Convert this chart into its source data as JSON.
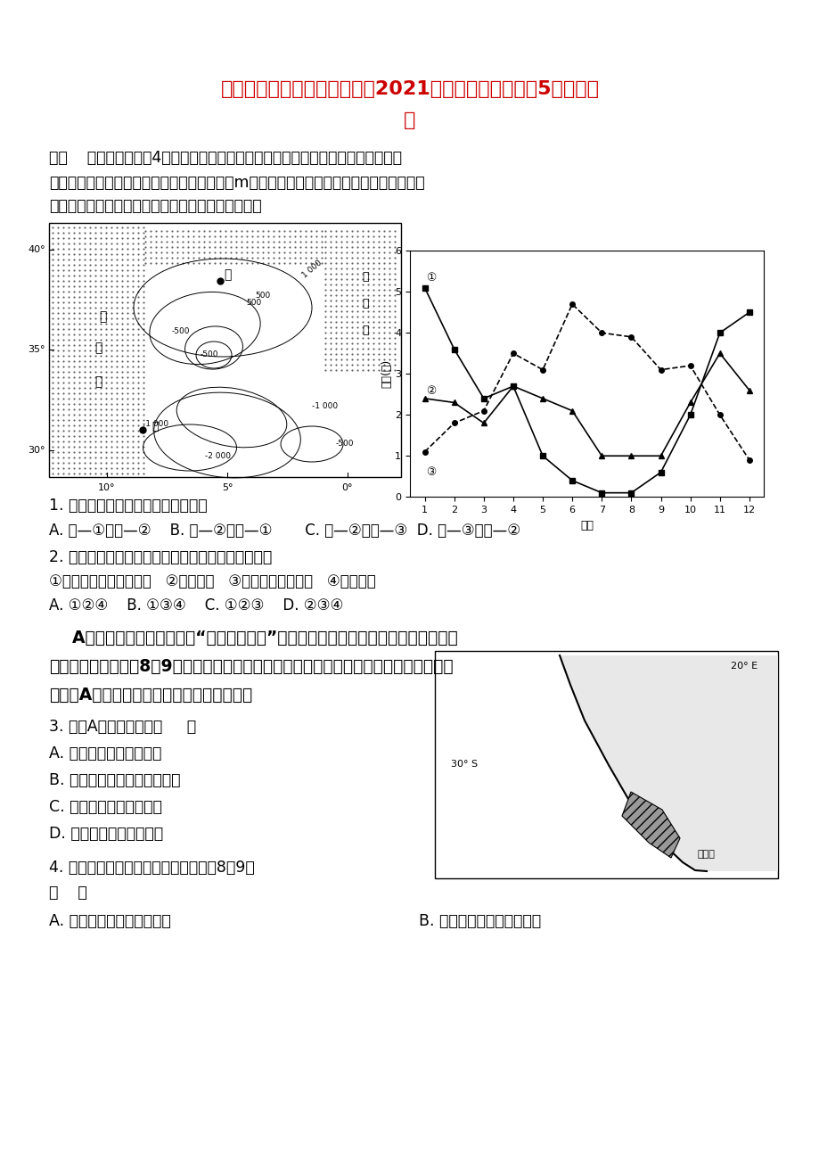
{
  "title_line1": "四川省攀枝花市第十五中学校2021届高三地理上学期第5次周考试",
  "title_line2": "题",
  "title_color": "#cc0000",
  "section1_header": "一、    选择题（每小题4分，每小题列出的四个备选项中只有一个是符合题目要求。",
  "section1_desc1": "下面左图为世界某区域等高线地形图（单位：m）；右图是风力统计曲线图，其中两条曲线",
  "section1_desc2": "分别对应左图中甲、乙两地。读图，回答下面小题。",
  "wind_chart": {
    "ylabel": "风力(级)",
    "xlabel": "月份",
    "curve1_x": [
      1,
      2,
      3,
      4,
      5,
      6,
      7,
      8,
      9,
      10,
      11,
      12
    ],
    "curve1_y": [
      5.1,
      3.6,
      2.4,
      2.7,
      1.0,
      0.4,
      0.1,
      0.1,
      0.6,
      2.0,
      4.0,
      4.5
    ],
    "curve2_x": [
      1,
      2,
      3,
      4,
      5,
      6,
      7,
      8,
      9,
      10,
      11,
      12
    ],
    "curve2_y": [
      2.4,
      2.3,
      1.8,
      2.7,
      2.4,
      2.1,
      1.0,
      1.0,
      1.0,
      2.3,
      3.5,
      2.6
    ],
    "curve3_x": [
      1,
      2,
      3,
      4,
      5,
      6,
      7,
      8,
      9,
      10,
      11,
      12
    ],
    "curve3_y": [
      1.1,
      1.8,
      2.1,
      3.5,
      3.1,
      4.7,
      4.0,
      3.9,
      3.1,
      3.2,
      2.0,
      0.9
    ]
  },
  "q1_text": "1. 甲、乙两地对应的风力统计曲线是",
  "q1_options": "A. 甲—①、乙—②    B. 甲—②、乙—①       C. 甲—②、乙—③  D. 甲—③、乙—②",
  "q2_text": "2. 影响甲、乙两地一年中风力大小产生差异的因素是",
  "q2_sub": "①气压带风带的季节移动   ②地形起伏   ③海陆热力性质差异   ④海陆位置",
  "q2_options": "A. ①②④    B. ①③④    C. ①②③    D. ②③④",
  "para_text1": "    A地区是世界上著名的野生“多肉植物王国”，植物大多叶小、肉厚，这里大部分时间",
  "para_text2": "是荒芜的，只在每年8、9月荒漠百花盛开、生机再现，迎来短暂的生长季节。图中阴影部",
  "para_text3": "分示意A地区的位置。读图，回答下列问题。",
  "q3_text": "3. 图示A地区沿岸洋流（     ）",
  "q3_A": "A. 是在西南风影响下形成",
  "q3_B": "B. 使向南的海轮航行速度加快",
  "q3_C": "C. 流经海区等温线向北凸",
  "q3_D": "D. 造成沿海地区气温升高",
  "q4_text": "4. 该地区多肉植物生长特征反映了当地8、9月",
  "q4_paren": "（    ）",
  "q4_A": "A. 受湿润西风影响，降水多",
  "q4_B": "B. 接受到太阳直射，光照强"
}
